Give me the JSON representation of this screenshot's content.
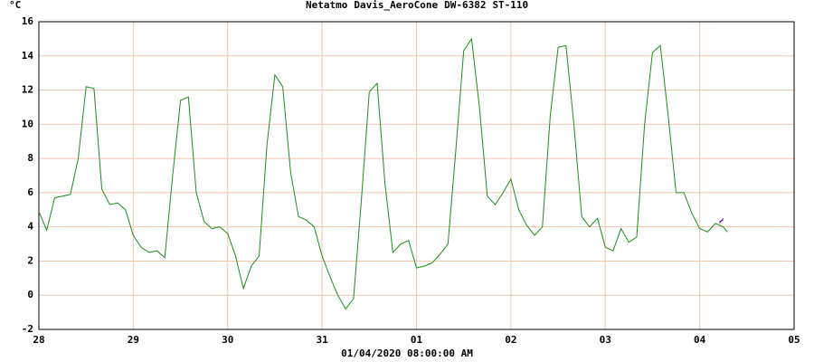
{
  "chart_data": {
    "type": "line",
    "y_unit": "°C",
    "x_label": "01/04/2020 08:00:00 AM",
    "series": [
      {
        "name": "Netatmo",
        "color": "#1a8f1a",
        "x": [
          0,
          2,
          4,
          6,
          8,
          10,
          12,
          14,
          16,
          18,
          20,
          22,
          24,
          26,
          28,
          30,
          32,
          34,
          36,
          38,
          40,
          42,
          44,
          46,
          48,
          50,
          52,
          54,
          56,
          58,
          60,
          62,
          64,
          66,
          68,
          70,
          72,
          74,
          76,
          78,
          80,
          82,
          84,
          86,
          88,
          90,
          92,
          94,
          96,
          98,
          100,
          102,
          104,
          106,
          108,
          110,
          112,
          114,
          116,
          118,
          120,
          122,
          124,
          126,
          128,
          130,
          132,
          134,
          136,
          138,
          140,
          142,
          144,
          146,
          148,
          150,
          152,
          154,
          156,
          158,
          160,
          162,
          164,
          166,
          168,
          170,
          172,
          174,
          175
        ],
        "values": [
          4.9,
          3.8,
          5.7,
          5.8,
          5.9,
          8.0,
          12.2,
          12.1,
          6.2,
          5.3,
          5.4,
          5.0,
          3.5,
          2.8,
          2.5,
          2.6,
          2.2,
          7.0,
          11.4,
          11.6,
          6.0,
          4.3,
          3.9,
          4.0,
          3.6,
          2.3,
          0.4,
          1.7,
          2.3,
          8.8,
          12.9,
          12.2,
          7.2,
          4.6,
          4.4,
          4.0,
          2.3,
          1.1,
          0.0,
          -0.8,
          -0.2,
          5.6,
          11.9,
          12.4,
          6.5,
          2.5,
          3.0,
          3.2,
          1.6,
          1.7,
          1.9,
          2.4,
          3.0,
          8.5,
          14.3,
          15.0,
          11.0,
          5.8,
          5.3,
          6.0,
          6.8,
          5.0,
          4.1,
          3.5,
          4.0,
          10.5,
          14.5,
          14.6,
          10.0,
          4.6,
          4.0,
          4.5,
          2.8,
          2.6,
          3.9,
          3.1,
          3.4,
          10.0,
          14.2,
          14.6,
          10.5,
          6.0,
          6.0,
          4.8,
          3.9,
          3.7,
          4.2,
          4.0,
          3.7
        ]
      },
      {
        "name": "Davis_AeroCone",
        "color": "#1a1acc",
        "x": [
          173,
          174
        ],
        "values": [
          4.3,
          4.4
        ]
      },
      {
        "name": "DW-6382",
        "color": "#a020a0",
        "x": [
          173,
          174
        ],
        "values": [
          4.2,
          4.5
        ]
      },
      {
        "name": "ST-110",
        "color": "#a01a1a",
        "x": [],
        "values": []
      }
    ],
    "xlim": [
      0,
      192
    ],
    "xticks": [
      {
        "value": 0,
        "label": "28"
      },
      {
        "value": 24,
        "label": "29"
      },
      {
        "value": 48,
        "label": "30"
      },
      {
        "value": 72,
        "label": "31"
      },
      {
        "value": 96,
        "label": "01"
      },
      {
        "value": 120,
        "label": "02"
      },
      {
        "value": 144,
        "label": "03"
      },
      {
        "value": 168,
        "label": "04"
      },
      {
        "value": 192,
        "label": "05"
      }
    ],
    "ylim": [
      -2,
      16
    ],
    "yticks": [
      -2,
      0,
      2,
      4,
      6,
      8,
      10,
      12,
      14,
      16
    ],
    "grid": true
  }
}
